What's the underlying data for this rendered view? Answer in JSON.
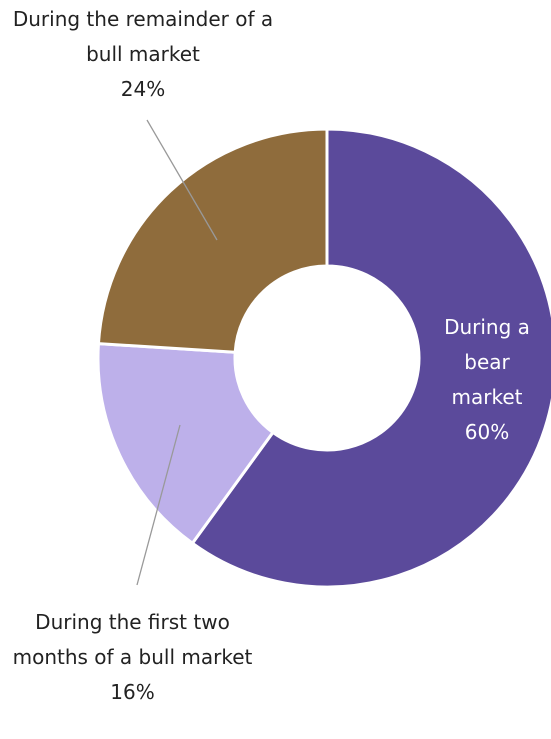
{
  "chart_data": {
    "type": "donut",
    "categories": [
      "During a bear market",
      "During the first two months of a bull market",
      "During the remainder of a bull market"
    ],
    "values": [
      60,
      16,
      24
    ],
    "value_labels": [
      "60%",
      "16%",
      "24%"
    ],
    "colors": [
      "#5b4a9b",
      "#bdb0ea",
      "#8f6c3c"
    ]
  }
}
